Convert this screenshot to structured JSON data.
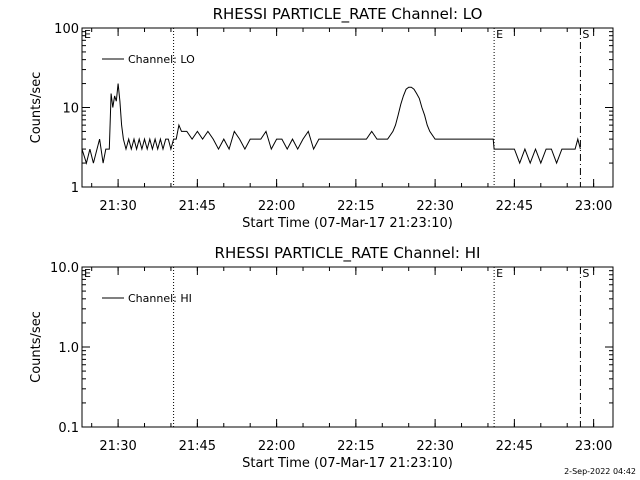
{
  "figure": {
    "stamp": "2-Sep-2022 04:42"
  },
  "chart_data": [
    {
      "type": "line",
      "title": "RHESSI PARTICLE_RATE Channel: LO",
      "xlabel": "Start Time (07-Mar-17 21:23:10)",
      "ylabel": "Counts/sec",
      "yscale": "log",
      "ylim": [
        1,
        100
      ],
      "ytick_labels": [
        "1",
        "10",
        "100"
      ],
      "ytick_values": [
        1,
        10,
        100
      ],
      "xlim": [
        "21:23:10",
        "23:03:40"
      ],
      "xtick_labels": [
        "21:30",
        "21:45",
        "22:00",
        "22:15",
        "22:30",
        "22:45",
        "23:00"
      ],
      "xtick_values": [
        "21:30:00",
        "21:45:00",
        "22:00:00",
        "22:15:00",
        "22:30:00",
        "22:45:00",
        "23:00:00"
      ],
      "legend": {
        "label": "Channel: LO",
        "position": "top-left"
      },
      "grid": false,
      "markers": [
        {
          "label": "E",
          "x": "21:23:10",
          "style": "none"
        },
        {
          "label": "",
          "x": "21:40:30",
          "style": "dotted"
        },
        {
          "label": "E",
          "x": "22:41:10",
          "style": "dotted"
        },
        {
          "label": "S",
          "x": "22:57:30",
          "style": "dashdot"
        }
      ],
      "series": [
        {
          "name": "Channel: LO",
          "x": [
            "21:23:10",
            "21:24:00",
            "21:24:40",
            "21:25:20",
            "21:26:00",
            "21:26:30",
            "21:27:10",
            "21:27:40",
            "21:28:00",
            "21:28:20",
            "21:28:40",
            "21:29:00",
            "21:29:20",
            "21:29:40",
            "21:30:00",
            "21:30:20",
            "21:30:40",
            "21:31:00",
            "21:31:30",
            "21:32:00",
            "21:32:30",
            "21:33:00",
            "21:33:30",
            "21:34:00",
            "21:34:30",
            "21:35:00",
            "21:35:30",
            "21:36:00",
            "21:36:30",
            "21:37:00",
            "21:37:30",
            "21:38:00",
            "21:38:30",
            "21:39:00",
            "21:39:30",
            "21:40:00",
            "21:40:30",
            "21:41:00",
            "21:41:30",
            "21:42:00",
            "21:43:00",
            "21:44:00",
            "21:45:00",
            "21:46:00",
            "21:47:00",
            "21:48:00",
            "21:49:00",
            "21:50:00",
            "21:51:00",
            "21:52:00",
            "21:53:00",
            "21:54:00",
            "21:55:00",
            "21:56:00",
            "21:57:00",
            "21:58:00",
            "21:59:00",
            "22:00:00",
            "22:01:00",
            "22:02:00",
            "22:03:00",
            "22:04:00",
            "22:05:00",
            "22:06:00",
            "22:07:00",
            "22:08:00",
            "22:09:00",
            "22:10:00",
            "22:11:00",
            "22:12:00",
            "22:13:00",
            "22:14:00",
            "22:15:00",
            "22:16:00",
            "22:17:00",
            "22:18:00",
            "22:19:00",
            "22:20:00",
            "22:21:00",
            "22:22:00",
            "22:22:30",
            "22:23:00",
            "22:23:30",
            "22:24:00",
            "22:24:30",
            "22:25:00",
            "22:25:30",
            "22:26:00",
            "22:26:30",
            "22:27:00",
            "22:27:30",
            "22:28:00",
            "22:28:30",
            "22:29:00",
            "22:30:00",
            "22:31:00",
            "22:32:00",
            "22:33:00",
            "22:34:00",
            "22:35:00",
            "22:36:00",
            "22:37:00",
            "22:38:00",
            "22:39:00",
            "22:40:00",
            "22:41:00",
            "22:41:10",
            "22:42:00",
            "22:43:00",
            "22:44:00",
            "22:45:00",
            "22:46:00",
            "22:47:00",
            "22:48:00",
            "22:49:00",
            "22:50:00",
            "22:51:00",
            "22:52:00",
            "22:53:00",
            "22:54:00",
            "22:55:00",
            "22:56:00",
            "22:56:30",
            "22:57:00",
            "22:57:30"
          ],
          "values": [
            3.0,
            2.0,
            3.0,
            2.0,
            3.0,
            4.0,
            2.0,
            3.0,
            3.0,
            3.0,
            15.0,
            10.0,
            14.0,
            12.0,
            20.0,
            12.0,
            6.0,
            4.0,
            3.0,
            4.0,
            3.0,
            4.0,
            3.0,
            4.0,
            3.0,
            4.0,
            3.0,
            4.0,
            3.0,
            4.0,
            3.0,
            4.0,
            3.0,
            4.0,
            4.0,
            3.0,
            4.0,
            4.0,
            6.0,
            5.0,
            5.0,
            4.0,
            5.0,
            4.0,
            5.0,
            4.0,
            3.0,
            4.0,
            3.0,
            5.0,
            4.0,
            3.0,
            4.0,
            4.0,
            4.0,
            5.0,
            3.0,
            4.0,
            4.0,
            3.0,
            4.0,
            3.0,
            4.0,
            5.0,
            3.0,
            4.0,
            4.0,
            4.0,
            4.0,
            4.0,
            4.0,
            4.0,
            4.0,
            4.0,
            4.0,
            5.0,
            4.0,
            4.0,
            4.0,
            5.0,
            6.0,
            8.0,
            11.0,
            14.0,
            17.0,
            18.0,
            18.0,
            17.0,
            15.0,
            13.0,
            10.0,
            8.0,
            6.0,
            5.0,
            4.0,
            4.0,
            4.0,
            4.0,
            4.0,
            4.0,
            4.0,
            4.0,
            4.0,
            4.0,
            4.0,
            4.0,
            3.0,
            3.0,
            3.0,
            3.0,
            3.0,
            2.0,
            3.0,
            2.0,
            3.0,
            2.0,
            3.0,
            3.0,
            2.0,
            3.0,
            3.0,
            3.0,
            3.0,
            4.0,
            3.0
          ]
        }
      ]
    },
    {
      "type": "line",
      "title": "RHESSI PARTICLE_RATE Channel: HI",
      "xlabel": "Start Time (07-Mar-17 21:23:10)",
      "ylabel": "Counts/sec",
      "yscale": "log",
      "ylim": [
        0.1,
        10
      ],
      "ytick_labels": [
        "0.1",
        "1.0",
        "10.0"
      ],
      "ytick_values": [
        0.1,
        1,
        10
      ],
      "xlim": [
        "21:23:10",
        "23:03:40"
      ],
      "xtick_labels": [
        "21:30",
        "21:45",
        "22:00",
        "22:15",
        "22:30",
        "22:45",
        "23:00"
      ],
      "xtick_values": [
        "21:30:00",
        "21:45:00",
        "22:00:00",
        "22:15:00",
        "22:30:00",
        "22:45:00",
        "23:00:00"
      ],
      "legend": {
        "label": "Channel: HI",
        "position": "top-left"
      },
      "grid": false,
      "markers": [
        {
          "label": "E",
          "x": "21:23:10",
          "style": "none"
        },
        {
          "label": "",
          "x": "21:40:30",
          "style": "dotted"
        },
        {
          "label": "E",
          "x": "22:41:10",
          "style": "dotted"
        },
        {
          "label": "S",
          "x": "22:57:30",
          "style": "dashdot"
        }
      ],
      "series": [
        {
          "name": "Channel: HI",
          "x": [],
          "values": []
        }
      ]
    }
  ]
}
